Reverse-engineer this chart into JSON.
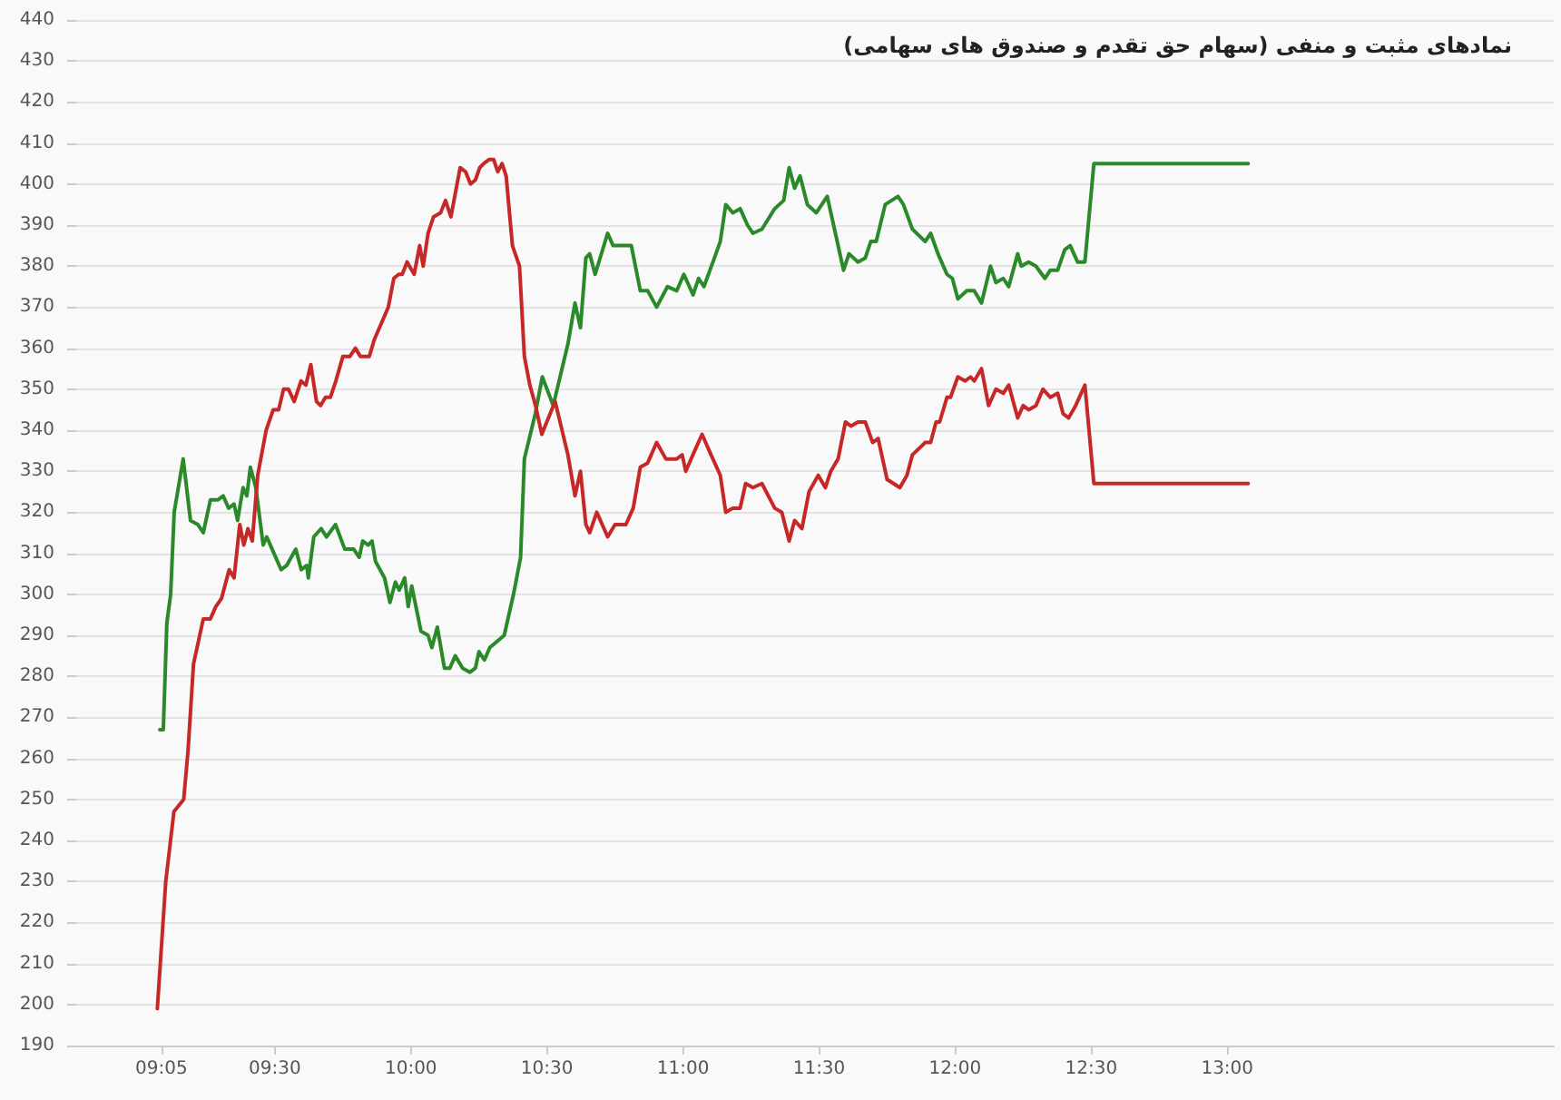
{
  "chart_data": {
    "type": "line",
    "title": "نمادهای مثبت و منفی (سهام حق تقدم و صندوق های سهامی)",
    "marker": "none",
    "line_style": "solid",
    "grid": "y",
    "xlim": [
      8.77,
      14.2
    ],
    "xticks": [
      {
        "value": 9.0833,
        "label": "09:05"
      },
      {
        "value": 9.5,
        "label": "09:30"
      },
      {
        "value": 10,
        "label": "10:00"
      },
      {
        "value": 10.5,
        "label": "10:30"
      },
      {
        "value": 11,
        "label": "11:00"
      },
      {
        "value": 11.5,
        "label": "11:30"
      },
      {
        "value": 12,
        "label": "12:00"
      },
      {
        "value": 12.5,
        "label": "12:30"
      },
      {
        "value": 13,
        "label": "13:00"
      }
    ],
    "ylim": [
      190,
      440
    ],
    "yticks": [
      190,
      200,
      210,
      220,
      230,
      240,
      250,
      260,
      270,
      280,
      290,
      300,
      310,
      320,
      330,
      340,
      350,
      360,
      370,
      380,
      390,
      400,
      410,
      420,
      430,
      440
    ],
    "series": [
      {
        "color": "#2a8a2a",
        "x": [
          9.077,
          9.09,
          9.103,
          9.117,
          9.13,
          9.163,
          9.19,
          9.217,
          9.237,
          9.263,
          9.29,
          9.31,
          9.33,
          9.35,
          9.363,
          9.383,
          9.397,
          9.41,
          9.43,
          9.457,
          9.47,
          9.49,
          9.523,
          9.543,
          9.577,
          9.597,
          9.617,
          9.623,
          9.643,
          9.67,
          9.69,
          9.723,
          9.757,
          9.79,
          9.81,
          9.823,
          9.843,
          9.857,
          9.87,
          9.903,
          9.923,
          9.943,
          9.957,
          9.977,
          9.99,
          10.003,
          10.037,
          10.063,
          10.077,
          10.097,
          10.123,
          10.143,
          10.163,
          10.19,
          10.217,
          10.237,
          10.25,
          10.27,
          10.29,
          10.343,
          10.377,
          10.403,
          10.417,
          10.457,
          10.483,
          10.523,
          10.577,
          10.603,
          10.623,
          10.643,
          10.657,
          10.677,
          10.723,
          10.743,
          10.81,
          10.843,
          10.87,
          10.903,
          10.943,
          10.977,
          11.003,
          11.037,
          11.057,
          11.077,
          11.11,
          11.137,
          11.157,
          11.183,
          11.21,
          11.237,
          11.257,
          11.29,
          11.337,
          11.37,
          11.39,
          11.41,
          11.43,
          11.457,
          11.49,
          11.53,
          11.55,
          11.59,
          11.61,
          11.643,
          11.67,
          11.69,
          11.71,
          11.743,
          11.79,
          11.81,
          11.843,
          11.89,
          11.91,
          11.937,
          11.97,
          11.99,
          12.01,
          12.043,
          12.07,
          12.097,
          12.13,
          12.15,
          12.177,
          12.197,
          12.23,
          12.243,
          12.27,
          12.297,
          12.33,
          12.35,
          12.377,
          12.403,
          12.423,
          12.45,
          12.477,
          12.51,
          13.077
        ],
        "values": [
          267,
          267,
          293,
          300,
          320,
          333,
          318,
          317,
          315,
          323,
          323,
          324,
          321,
          322,
          318,
          326,
          324,
          331,
          326,
          312,
          314,
          311,
          306,
          307,
          311,
          306,
          307,
          304,
          314,
          316,
          314,
          317,
          311,
          311,
          309,
          313,
          312,
          313,
          308,
          304,
          298,
          303,
          301,
          304,
          297,
          302,
          291,
          290,
          287,
          292,
          282,
          282,
          285,
          282,
          281,
          282,
          286,
          284,
          287,
          290,
          300,
          309,
          333,
          344,
          353,
          346,
          361,
          371,
          365,
          382,
          383,
          378,
          388,
          385,
          385,
          374,
          374,
          370,
          375,
          374,
          378,
          373,
          377,
          375,
          381,
          386,
          395,
          393,
          394,
          390,
          388,
          389,
          394,
          396,
          404,
          399,
          402,
          395,
          393,
          397,
          391,
          379,
          383,
          381,
          382,
          386,
          386,
          395,
          397,
          395,
          389,
          386,
          388,
          383,
          378,
          377,
          372,
          374,
          374,
          371,
          380,
          376,
          377,
          375,
          383,
          380,
          381,
          380,
          377,
          379,
          379,
          384,
          385,
          381,
          381,
          405,
          405
        ]
      },
      {
        "color": "#c62828",
        "x": [
          9.068,
          9.099,
          9.129,
          9.165,
          9.181,
          9.201,
          9.237,
          9.263,
          9.283,
          9.304,
          9.332,
          9.35,
          9.371,
          9.386,
          9.401,
          9.417,
          9.437,
          9.468,
          9.494,
          9.514,
          9.532,
          9.55,
          9.571,
          9.596,
          9.614,
          9.632,
          9.653,
          9.668,
          9.686,
          9.704,
          9.724,
          9.75,
          9.776,
          9.796,
          9.814,
          9.832,
          9.847,
          9.865,
          9.891,
          9.917,
          9.937,
          9.955,
          9.968,
          9.986,
          10.012,
          10.032,
          10.045,
          10.063,
          10.083,
          10.109,
          10.127,
          10.147,
          10.181,
          10.201,
          10.219,
          10.237,
          10.253,
          10.268,
          10.288,
          10.304,
          10.319,
          10.335,
          10.35,
          10.373,
          10.399,
          10.417,
          10.437,
          10.458,
          10.481,
          10.53,
          10.577,
          10.603,
          10.623,
          10.643,
          10.657,
          10.683,
          10.723,
          10.75,
          10.79,
          10.817,
          10.843,
          10.87,
          10.903,
          10.937,
          10.977,
          10.997,
          11.01,
          11.043,
          11.07,
          11.103,
          11.137,
          11.157,
          11.183,
          11.21,
          11.23,
          11.257,
          11.29,
          11.337,
          11.363,
          11.39,
          11.41,
          11.437,
          11.463,
          11.497,
          11.523,
          11.543,
          11.57,
          11.597,
          11.617,
          11.643,
          11.67,
          11.697,
          11.717,
          11.75,
          11.797,
          11.823,
          11.843,
          11.89,
          11.91,
          11.93,
          11.943,
          11.97,
          11.983,
          12.01,
          12.037,
          12.057,
          12.07,
          12.097,
          12.123,
          12.15,
          12.177,
          12.197,
          12.23,
          12.25,
          12.27,
          12.297,
          12.323,
          12.35,
          12.377,
          12.397,
          12.417,
          12.443,
          12.477,
          12.51,
          13.077
        ],
        "values": [
          199,
          230,
          247,
          250,
          262,
          283,
          294,
          294,
          297,
          299,
          306,
          304,
          317,
          312,
          316,
          313,
          329,
          340,
          345,
          345,
          350,
          350,
          347,
          352,
          351,
          356,
          347,
          346,
          348,
          348,
          352,
          358,
          358,
          360,
          358,
          358,
          358,
          362,
          366,
          370,
          377,
          378,
          378,
          381,
          378,
          385,
          380,
          388,
          392,
          393,
          396,
          392,
          404,
          403,
          400,
          401,
          404,
          405,
          406,
          406,
          403,
          405,
          402,
          385,
          380,
          358,
          351,
          346,
          339,
          347,
          334,
          324,
          330,
          317,
          315,
          320,
          314,
          317,
          317,
          321,
          331,
          332,
          337,
          333,
          333,
          334,
          330,
          335,
          339,
          334,
          329,
          320,
          321,
          321,
          327,
          326,
          327,
          321,
          320,
          313,
          318,
          316,
          325,
          329,
          326,
          330,
          333,
          342,
          341,
          342,
          342,
          337,
          338,
          328,
          326,
          329,
          334,
          337,
          337,
          342,
          342,
          348,
          348,
          353,
          352,
          353,
          352,
          355,
          346,
          350,
          349,
          351,
          343,
          346,
          345,
          346,
          350,
          348,
          349,
          344,
          343,
          346,
          351,
          327,
          327
        ]
      }
    ]
  }
}
